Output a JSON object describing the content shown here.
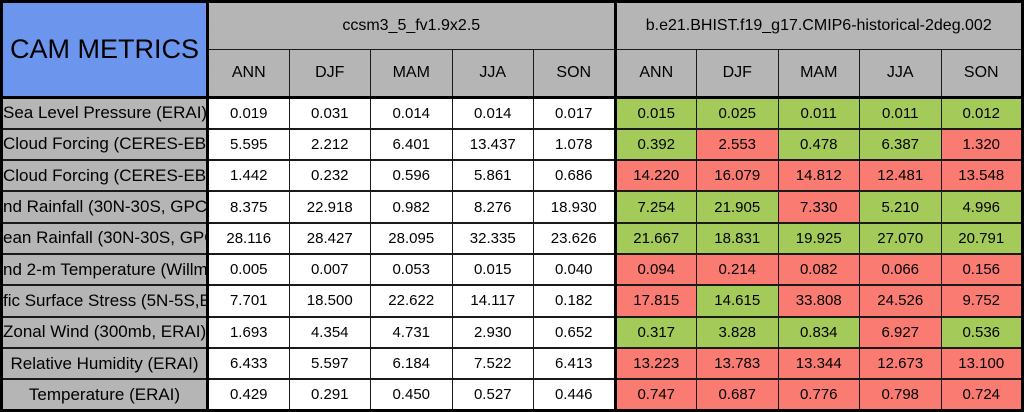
{
  "chart_data": {
    "type": "table",
    "title": "CAM METRICS",
    "col_groups": [
      {
        "name": "ccsm3_5_fv1.9x2.5",
        "seasons": [
          "ANN",
          "DJF",
          "MAM",
          "JJA",
          "SON"
        ]
      },
      {
        "name": "b.e21.BHIST.f19_g17.CMIP6-historical-2deg.002",
        "seasons": [
          "ANN",
          "DJF",
          "MAM",
          "JJA",
          "SON"
        ]
      }
    ],
    "rows": [
      {
        "label": "Sea Level Pressure (ERAI)",
        "left": [
          "0.019",
          "0.031",
          "0.014",
          "0.014",
          "0.017"
        ],
        "right": [
          {
            "v": "0.015",
            "c": "green"
          },
          {
            "v": "0.025",
            "c": "green"
          },
          {
            "v": "0.011",
            "c": "green"
          },
          {
            "v": "0.011",
            "c": "green"
          },
          {
            "v": "0.012",
            "c": "green"
          }
        ]
      },
      {
        "label": "Cloud Forcing (CERES-EB",
        "left": [
          "5.595",
          "2.212",
          "6.401",
          "13.437",
          "1.078"
        ],
        "right": [
          {
            "v": "0.392",
            "c": "green"
          },
          {
            "v": "2.553",
            "c": "red"
          },
          {
            "v": "0.478",
            "c": "green"
          },
          {
            "v": "6.387",
            "c": "green"
          },
          {
            "v": "1.320",
            "c": "red"
          }
        ]
      },
      {
        "label": "Cloud Forcing (CERES-EB",
        "left": [
          "1.442",
          "0.232",
          "0.596",
          "5.861",
          "0.686"
        ],
        "right": [
          {
            "v": "14.220",
            "c": "red"
          },
          {
            "v": "16.079",
            "c": "red"
          },
          {
            "v": "14.812",
            "c": "red"
          },
          {
            "v": "12.481",
            "c": "red"
          },
          {
            "v": "13.548",
            "c": "red"
          }
        ]
      },
      {
        "label": "nd Rainfall (30N-30S, GPC",
        "left": [
          "8.375",
          "22.918",
          "0.982",
          "8.276",
          "18.930"
        ],
        "right": [
          {
            "v": "7.254",
            "c": "green"
          },
          {
            "v": "21.905",
            "c": "green"
          },
          {
            "v": "7.330",
            "c": "red"
          },
          {
            "v": "5.210",
            "c": "green"
          },
          {
            "v": "4.996",
            "c": "green"
          }
        ]
      },
      {
        "label": "ean Rainfall (30N-30S, GPC",
        "left": [
          "28.116",
          "28.427",
          "28.095",
          "32.335",
          "23.626"
        ],
        "right": [
          {
            "v": "21.667",
            "c": "green"
          },
          {
            "v": "18.831",
            "c": "green"
          },
          {
            "v": "19.925",
            "c": "green"
          },
          {
            "v": "27.070",
            "c": "green"
          },
          {
            "v": "20.791",
            "c": "green"
          }
        ]
      },
      {
        "label": "nd 2-m Temperature (Willmo",
        "left": [
          "0.005",
          "0.007",
          "0.053",
          "0.015",
          "0.040"
        ],
        "right": [
          {
            "v": "0.094",
            "c": "red"
          },
          {
            "v": "0.214",
            "c": "red"
          },
          {
            "v": "0.082",
            "c": "red"
          },
          {
            "v": "0.066",
            "c": "red"
          },
          {
            "v": "0.156",
            "c": "red"
          }
        ]
      },
      {
        "label": "fic Surface Stress (5N-5S,E",
        "left": [
          "7.701",
          "18.500",
          "22.622",
          "14.117",
          "0.182"
        ],
        "right": [
          {
            "v": "17.815",
            "c": "red"
          },
          {
            "v": "14.615",
            "c": "green"
          },
          {
            "v": "33.808",
            "c": "red"
          },
          {
            "v": "24.526",
            "c": "red"
          },
          {
            "v": "9.752",
            "c": "red"
          }
        ]
      },
      {
        "label": "Zonal Wind (300mb, ERAI)",
        "left": [
          "1.693",
          "4.354",
          "4.731",
          "2.930",
          "0.652"
        ],
        "right": [
          {
            "v": "0.317",
            "c": "green"
          },
          {
            "v": "3.828",
            "c": "green"
          },
          {
            "v": "0.834",
            "c": "green"
          },
          {
            "v": "6.927",
            "c": "red"
          },
          {
            "v": "0.536",
            "c": "green"
          }
        ]
      },
      {
        "label": "Relative Humidity (ERAI)",
        "left": [
          "6.433",
          "5.597",
          "6.184",
          "7.522",
          "6.413"
        ],
        "right": [
          {
            "v": "13.223",
            "c": "red"
          },
          {
            "v": "13.783",
            "c": "red"
          },
          {
            "v": "13.344",
            "c": "red"
          },
          {
            "v": "12.673",
            "c": "red"
          },
          {
            "v": "13.100",
            "c": "red"
          }
        ]
      },
      {
        "label": "Temperature (ERAI)",
        "left": [
          "0.429",
          "0.291",
          "0.450",
          "0.527",
          "0.446"
        ],
        "right": [
          {
            "v": "0.747",
            "c": "red"
          },
          {
            "v": "0.687",
            "c": "red"
          },
          {
            "v": "0.776",
            "c": "red"
          },
          {
            "v": "0.798",
            "c": "red"
          },
          {
            "v": "0.724",
            "c": "red"
          }
        ]
      }
    ]
  },
  "colors": {
    "title_blue": "#6c96ee",
    "header_gray": "#b5b5b5",
    "good_green": "#a4cb59",
    "bad_red": "#f97b72",
    "border_black": "#000000"
  }
}
